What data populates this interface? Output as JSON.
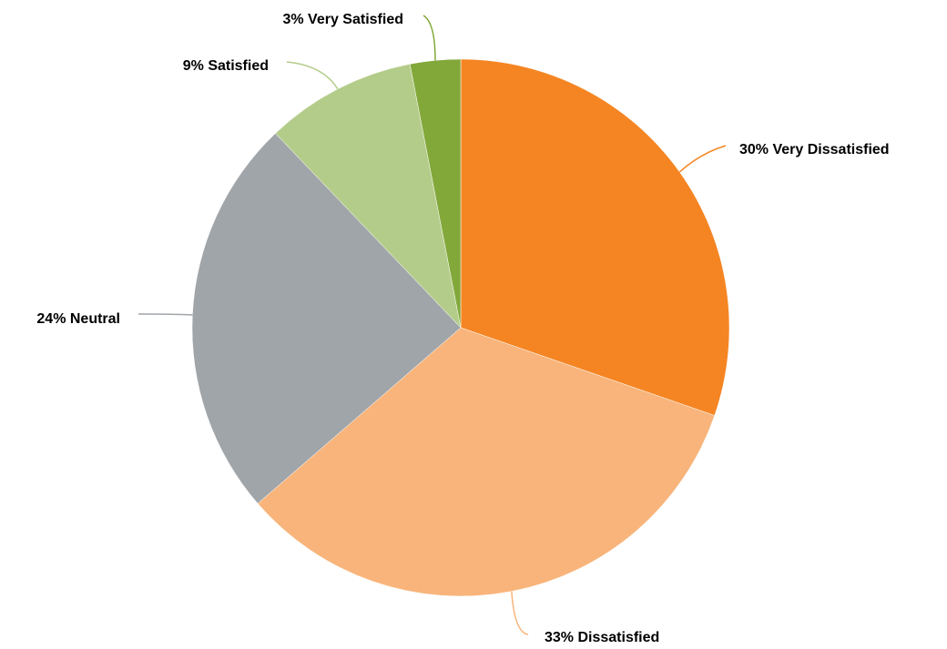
{
  "chart_data": {
    "type": "pie",
    "categories": [
      "Very Dissatisfied",
      "Dissatisfied",
      "Neutral",
      "Satisfied",
      "Very Satisfied"
    ],
    "values": [
      30,
      33,
      24,
      9,
      3
    ],
    "value_labels": [
      "30%",
      "33%",
      "24%",
      "9%",
      "3%"
    ],
    "colors": [
      "#f58523",
      "#f8b47a",
      "#a0a5a9",
      "#b4cc8a",
      "#82a83a"
    ]
  }
}
